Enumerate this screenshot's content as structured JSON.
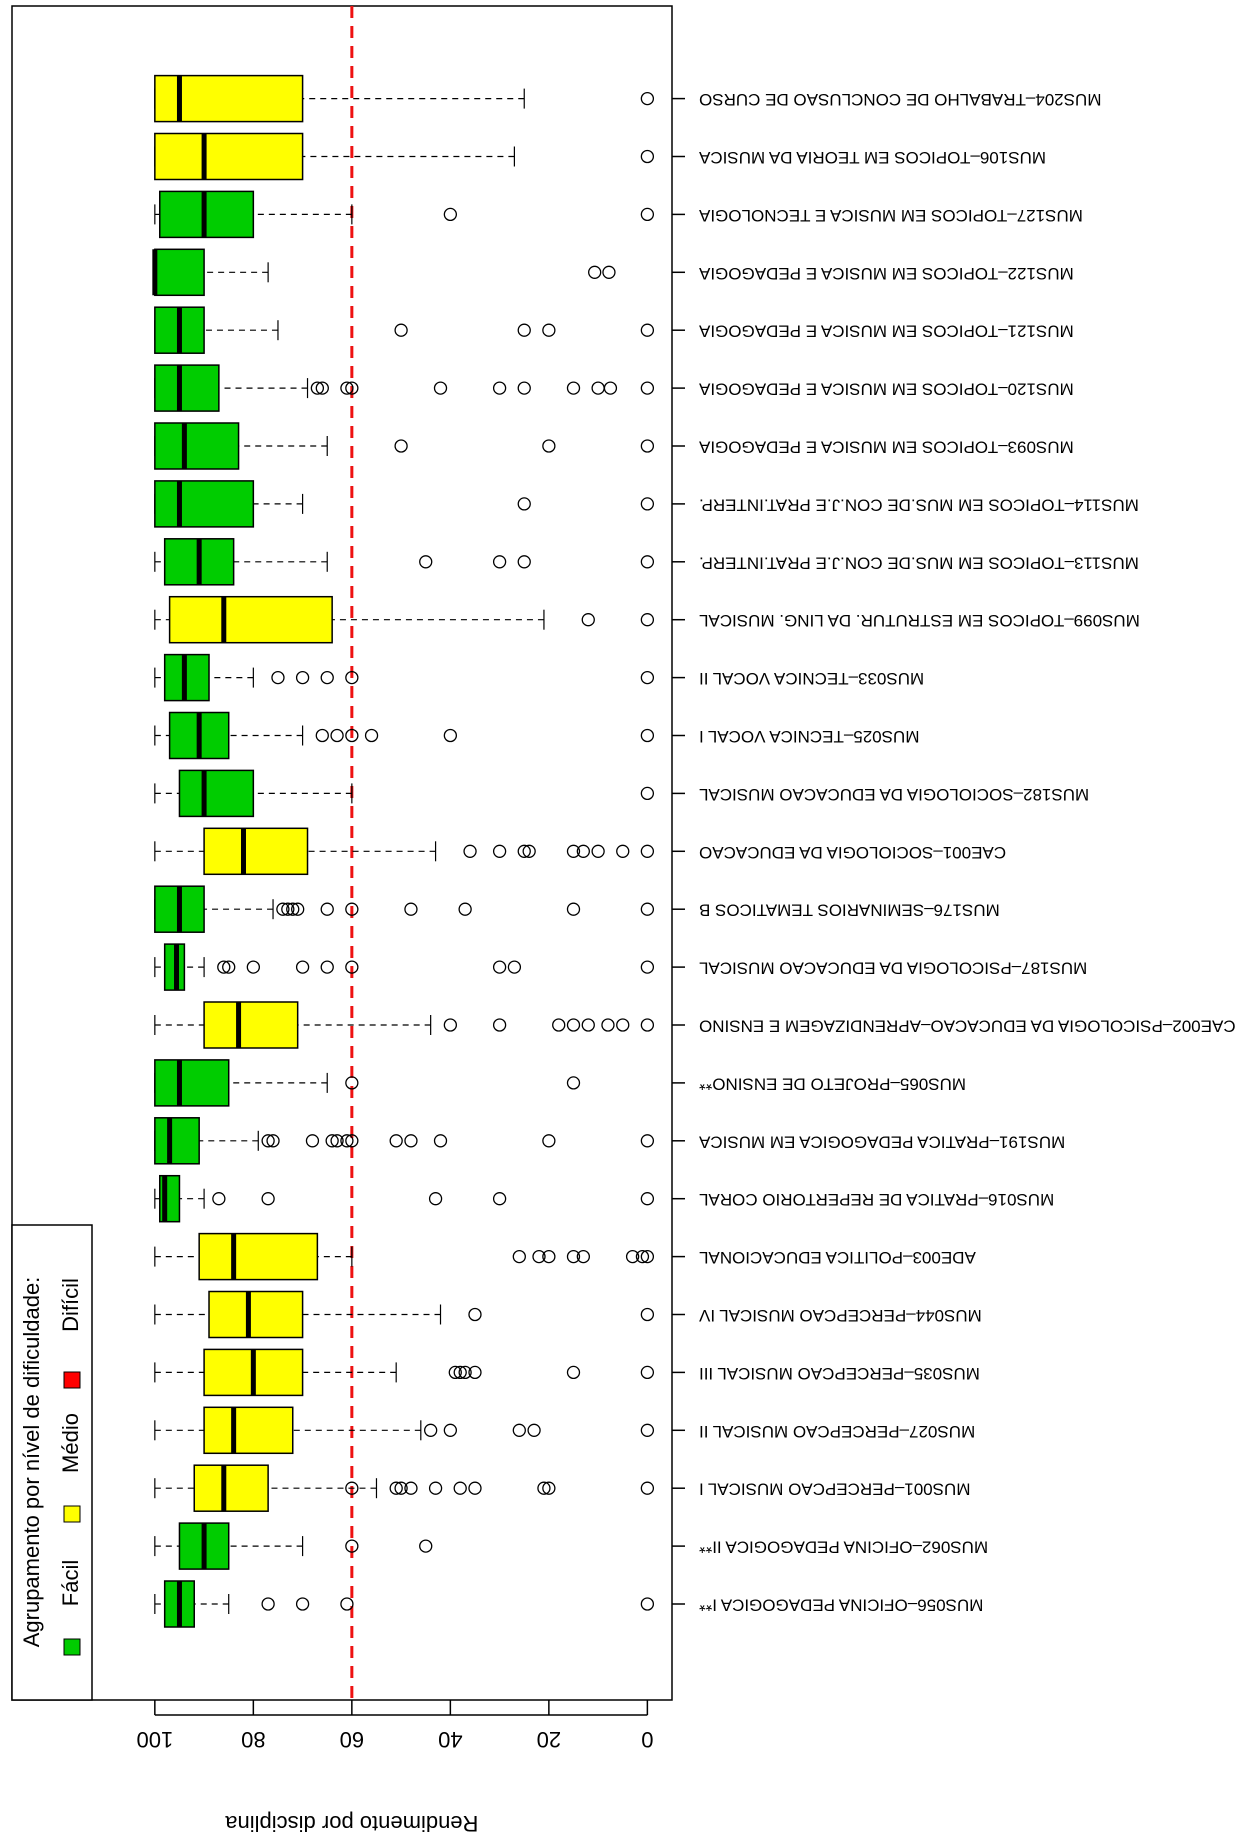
{
  "chart_data": {
    "type": "boxplot",
    "y_axis_label": "Rendimento por disciplina",
    "xlim": [
      -5,
      129
    ],
    "xticks": [
      0,
      20,
      40,
      60,
      80,
      100
    ],
    "reference_line": {
      "value": 60,
      "color": "#ee1111"
    },
    "legend": {
      "title": "Agrupamento por nível de dificuldade:",
      "position": "bottom-left",
      "items": [
        {
          "name": "Fácil",
          "color": "#00cc00"
        },
        {
          "name": "Médio",
          "color": "#ffff00"
        },
        {
          "name": "Difícil",
          "color": "#ff0000"
        }
      ]
    },
    "categories": [
      "MUS204–TRABALHO DE CONCLUSAO DE CURSO",
      "MUS106–TOPICOS EM TEORIA DA MUSICA",
      "MUS127–TOPICOS EM MUSICA E TECNOLOGIA",
      "MUS122–TOPICOS EM MUSICA E PEDAGOGIA",
      "MUS121–TOPICOS EM MUSICA E PEDAGOGIA",
      "MUS120–TOPICOS EM MUSICA E PEDAGOGIA",
      "MUS093–TOPICOS EM MUSICA E PEDAGOGIA",
      "MUS114–TOPICOS EM MUS.DE CON.J.E PRAT.INTERP.",
      "MUS113–TOPICOS EM MUS.DE CON.J.E PRAT.INTERP.",
      "MUS099–TOPICOS EM ESTRUTUR. DA LING. MUSICAL",
      "MUS033–TECNICA VOCAL II",
      "MUS025–TECNICA VOCAL I",
      "MUS182–SOCIOLOGIA DA EDUCACAO MUSICAL",
      "CAE001–SOCIOLOGIA DA EDUCACAO",
      "MUS176–SEMINARIOS TEMATICOS B",
      "MUS187–PSICOLOGIA DA EDUCACAO MUSICAL",
      "CAE002–PSICOLOGIA DA EDUCACAO–APRENDIZAGEM E ENSINO",
      "MUS065–PROJETO DE ENSINO**",
      "MUS191–PRATICA PEDAGOGICA EM MUSICA",
      "MUS016–PRATICA DE REPERTORIO CORAL",
      "ADE003–POLITICA EDUCACIONAL",
      "MUS044–PERCEPCAO MUSICAL IV",
      "MUS035–PERCEPCAO MUSICAL III",
      "MUS027–PERCEPCAO MUSICAL II",
      "MUS001–PERCEPCAO MUSICAL I",
      "MUS062–OFICINA PEDAGOGICA II**",
      "MUS056–OFICINA PEDAGOGICA I**"
    ],
    "boxes": [
      {
        "color": "#ffff00",
        "min": 25,
        "q1": 70,
        "median": 95,
        "q3": 100,
        "max": 100,
        "outliers": [
          0
        ]
      },
      {
        "color": "#ffff00",
        "min": 27,
        "q1": 70,
        "median": 90,
        "q3": 100,
        "max": 100,
        "outliers": [
          0
        ]
      },
      {
        "color": "#00cc00",
        "min": 60,
        "q1": 80,
        "median": 90,
        "q3": 99,
        "max": 100,
        "outliers": [
          40,
          0
        ]
      },
      {
        "color": "#00cc00",
        "min": 77,
        "q1": 90,
        "median": 100,
        "q3": 100,
        "max": 100,
        "outliers": [
          10.7,
          7.8
        ]
      },
      {
        "color": "#00cc00",
        "min": 75,
        "q1": 90,
        "median": 95,
        "q3": 100,
        "max": 100,
        "outliers": [
          50,
          25,
          20,
          0
        ]
      },
      {
        "color": "#00cc00",
        "min": 69,
        "q1": 87,
        "median": 95,
        "q3": 100,
        "max": 100,
        "outliers": [
          67,
          66,
          61,
          60,
          42,
          30,
          25,
          15,
          10,
          7.5,
          0
        ]
      },
      {
        "color": "#00cc00",
        "min": 65,
        "q1": 83,
        "median": 94,
        "q3": 100,
        "max": 100,
        "outliers": [
          50,
          20,
          0
        ]
      },
      {
        "color": "#00cc00",
        "min": 70,
        "q1": 80,
        "median": 95,
        "q3": 100,
        "max": 100,
        "outliers": [
          25,
          0
        ]
      },
      {
        "color": "#00cc00",
        "min": 65,
        "q1": 84,
        "median": 91,
        "q3": 98,
        "max": 100,
        "outliers": [
          45,
          30,
          25,
          0
        ]
      },
      {
        "color": "#ffff00",
        "min": 21,
        "q1": 64,
        "median": 86,
        "q3": 97,
        "max": 100,
        "outliers": [
          12,
          0
        ]
      },
      {
        "color": "#00cc00",
        "min": 80,
        "q1": 89,
        "median": 94,
        "q3": 98,
        "max": 100,
        "outliers": [
          75,
          70,
          65,
          60,
          0
        ]
      },
      {
        "color": "#00cc00",
        "min": 70,
        "q1": 85,
        "median": 91,
        "q3": 97,
        "max": 100,
        "outliers": [
          66,
          63,
          60,
          56,
          40,
          0
        ]
      },
      {
        "color": "#00cc00",
        "min": 60,
        "q1": 80,
        "median": 90,
        "q3": 95,
        "max": 100,
        "outliers": [
          0
        ]
      },
      {
        "color": "#ffff00",
        "min": 43,
        "q1": 69,
        "median": 82,
        "q3": 90,
        "max": 100,
        "outliers": [
          36,
          30,
          25,
          24,
          15,
          13,
          10,
          5,
          0
        ]
      },
      {
        "color": "#00cc00",
        "min": 76,
        "q1": 90,
        "median": 95,
        "q3": 100,
        "max": 100,
        "outliers": [
          74,
          73,
          72,
          71,
          65,
          60,
          48,
          37,
          15,
          0
        ]
      },
      {
        "color": "#00cc00",
        "min": 90,
        "q1": 94,
        "median": 95.6,
        "q3": 98,
        "max": 100,
        "outliers": [
          86,
          85,
          80,
          70,
          65,
          60,
          30,
          27,
          0
        ]
      },
      {
        "color": "#ffff00",
        "min": 44,
        "q1": 71,
        "median": 83,
        "q3": 90,
        "max": 100,
        "outliers": [
          40,
          30,
          18,
          15,
          12,
          8,
          5,
          0
        ]
      },
      {
        "color": "#00cc00",
        "min": 65,
        "q1": 85,
        "median": 95,
        "q3": 100,
        "max": 100,
        "outliers": [
          60,
          15
        ]
      },
      {
        "color": "#00cc00",
        "min": 79,
        "q1": 91,
        "median": 97,
        "q3": 100,
        "max": 100,
        "outliers": [
          77,
          76,
          68,
          64,
          63,
          61,
          60,
          51,
          48,
          42,
          20,
          0
        ]
      },
      {
        "color": "#00cc00",
        "min": 90,
        "q1": 95,
        "median": 98,
        "q3": 99,
        "max": 100,
        "outliers": [
          87,
          77,
          43,
          30,
          0
        ]
      },
      {
        "color": "#ffff00",
        "min": 60,
        "q1": 67,
        "median": 84,
        "q3": 91,
        "max": 100,
        "outliers": [
          26,
          22,
          20,
          15,
          13,
          3,
          1,
          0
        ]
      },
      {
        "color": "#ffff00",
        "min": 42,
        "q1": 70,
        "median": 81,
        "q3": 89,
        "max": 100,
        "outliers": [
          35,
          0
        ]
      },
      {
        "color": "#ffff00",
        "min": 51,
        "q1": 70,
        "median": 80,
        "q3": 90,
        "max": 100,
        "outliers": [
          39,
          38,
          37,
          35,
          15,
          0
        ]
      },
      {
        "color": "#ffff00",
        "min": 46,
        "q1": 72,
        "median": 84,
        "q3": 90,
        "max": 100,
        "outliers": [
          44,
          40,
          26,
          23,
          0
        ]
      },
      {
        "color": "#ffff00",
        "min": 55,
        "q1": 77,
        "median": 86,
        "q3": 92,
        "max": 100,
        "outliers": [
          60,
          51,
          50,
          48,
          43,
          38,
          35,
          21,
          20,
          0
        ]
      },
      {
        "color": "#00cc00",
        "min": 70,
        "q1": 85,
        "median": 90,
        "q3": 95,
        "max": 100,
        "outliers": [
          60,
          45
        ]
      },
      {
        "color": "#00cc00",
        "min": 85,
        "q1": 92,
        "median": 95,
        "q3": 98,
        "max": 100,
        "outliers": [
          77,
          70,
          61,
          0
        ]
      }
    ]
  }
}
